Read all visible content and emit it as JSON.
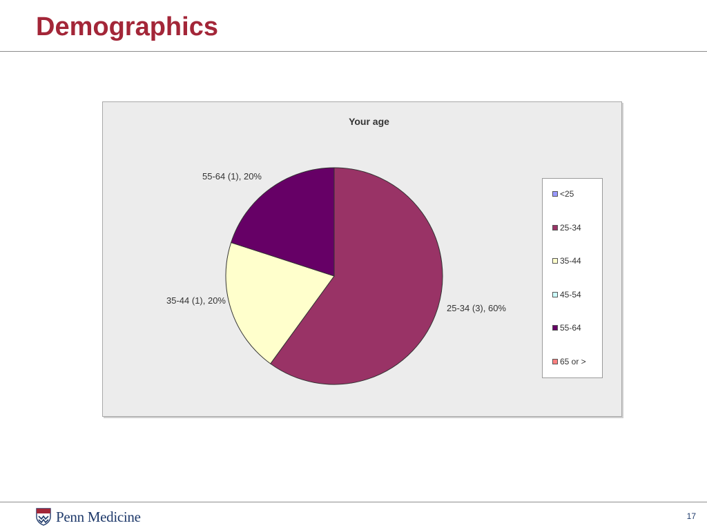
{
  "slide": {
    "title": "Demographics",
    "footer_logo_text": "Penn Medicine",
    "page_number": "17"
  },
  "chart_data": {
    "type": "pie",
    "title": "Your age",
    "categories": [
      "<25",
      "25-34",
      "35-44",
      "45-54",
      "55-64",
      "65 or >"
    ],
    "values": [
      0,
      3,
      1,
      0,
      1,
      0
    ],
    "percent": [
      0,
      60,
      20,
      0,
      20,
      0
    ],
    "colors": [
      "#9999ff",
      "#993366",
      "#ffffcc",
      "#ccffff",
      "#660066",
      "#ff8080"
    ],
    "data_labels": [
      "",
      "25-34 (3), 60%",
      "35-44 (1), 20%",
      "",
      "55-64 (1), 20%",
      ""
    ],
    "legend_placement": "right",
    "start_angle": "12 o'clock, clockwise"
  }
}
